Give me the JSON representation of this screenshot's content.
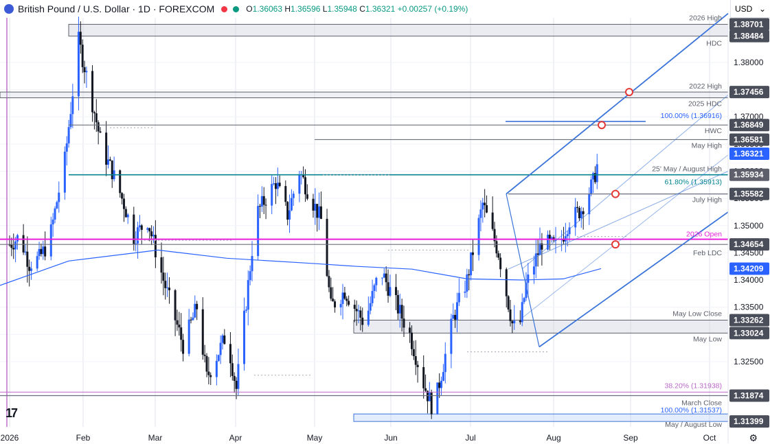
{
  "header": {
    "title": "British Pound / U.S. Dollar · 1D · FOREXCOM",
    "ohlc": [
      {
        "k": "O",
        "v": "1.36063"
      },
      {
        "k": "H",
        "v": "1.36596"
      },
      {
        "k": "L",
        "v": "1.35948"
      },
      {
        "k": "C",
        "v": "1.36321"
      },
      {
        "k": "",
        "v": "+0.00257 (+0.19%)"
      }
    ]
  },
  "currency": "USD",
  "colors": {
    "up": "#2962ff",
    "down": "#131722",
    "ma": "#2962ff",
    "open_line": "#e91edd",
    "teal": "#00838f",
    "grid": "#e0e3eb",
    "zone": "#d1d4e3",
    "channel": "#3b74d9",
    "price_tag": "#2962ff",
    "level_tag": "#4a4e5a"
  },
  "chart_data": {
    "type": "candlestick",
    "instrument": "British Pound / U.S. Dollar",
    "timeframe": "1D",
    "ylim": [
      1.313,
      1.3882
    ],
    "y_ticks": [
      1.325,
      1.33,
      1.335,
      1.34,
      1.345,
      1.35,
      1.355,
      1.36,
      1.365,
      1.37,
      1.375,
      1.38
    ],
    "x_labels": [
      "2026",
      "Feb",
      "Mar",
      "Apr",
      "May",
      "Jun",
      "Jul",
      "Aug",
      "Sep",
      "Oct"
    ],
    "last_price": 1.36321,
    "ma_value": 1.34209,
    "levels": [
      {
        "price": 1.38701,
        "label": "2026 High",
        "zone_to": 1.38484
      },
      {
        "price": 1.38484,
        "label": "HDC"
      },
      {
        "price": 1.37456,
        "label": "2022 High"
      },
      {
        "price": 1.3735,
        "label": "2025 HDC"
      },
      {
        "price": 1.36916,
        "label": "100.00% (1.36916)"
      },
      {
        "price": 1.36849,
        "label": "HWC"
      },
      {
        "price": 1.36581,
        "label": "May High"
      },
      {
        "price": 1.35934,
        "label": "25' May / August High"
      },
      {
        "price": 1.35913,
        "label": "61.80% (1.35913)"
      },
      {
        "price": 1.35582,
        "label": "July High"
      },
      {
        "price": 1.3475,
        "label": "2026 Open"
      },
      {
        "price": 1.34654,
        "label": "Feb LDC"
      },
      {
        "price": 1.33262,
        "label": "May Low Close",
        "zone_to": 1.33024
      },
      {
        "price": 1.33024,
        "label": "May Low"
      },
      {
        "price": 1.31938,
        "label": "38.20% (1.31938)"
      },
      {
        "price": 1.31874,
        "label": "March Close"
      },
      {
        "price": 1.31537,
        "label": "100.00% (1.31537)"
      },
      {
        "price": 1.31399,
        "label": "May / August Low"
      }
    ],
    "price_tags": [
      "1.38701",
      "1.38484",
      "1.37456",
      "1.36849",
      "1.36581",
      "1.36321",
      "1.35934",
      "1.35582",
      "1.34654",
      "1.34209",
      "1.33262",
      "1.33024",
      "1.31874",
      "1.31399"
    ]
  }
}
